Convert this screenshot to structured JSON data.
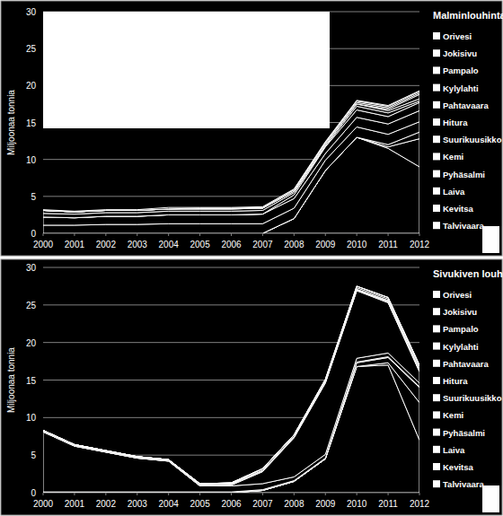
{
  "chart_data": [
    {
      "type": "area",
      "stacked": true,
      "title": "Malminlouhinta",
      "y_label": "Miljoonaa tonnia",
      "x": [
        2000,
        2001,
        2002,
        2003,
        2004,
        2005,
        2006,
        2007,
        2008,
        2009,
        2010,
        2011,
        2012
      ],
      "xlim": [
        2000,
        2012
      ],
      "xticks": [
        2000,
        2001,
        2002,
        2003,
        2004,
        2005,
        2006,
        2007,
        2008,
        2009,
        2010,
        2011,
        2012
      ],
      "ylim": [
        0,
        30
      ],
      "yticks": [
        0,
        5,
        10,
        15,
        20,
        25,
        30
      ],
      "grid": true,
      "legend": "right",
      "series": [
        {
          "name": "Talvivaara",
          "color": "#ffffff",
          "values": [
            0,
            0,
            0,
            0,
            0,
            0,
            0,
            0,
            2.0,
            8.5,
            13.0,
            11.5,
            9.0
          ]
        },
        {
          "name": "Kevitsa",
          "color": "#ffffff",
          "values": [
            0,
            0,
            0,
            0,
            0,
            0,
            0,
            0,
            0,
            0,
            0,
            0.2,
            3.8
          ]
        },
        {
          "name": "Laiva",
          "color": "#ffffff",
          "values": [
            0,
            0,
            0,
            0,
            0,
            0,
            0,
            0,
            0,
            0,
            0,
            0.3,
            0.9
          ]
        },
        {
          "name": "Pyhäsalmi",
          "color": "#ffffff",
          "values": [
            1.1,
            1.1,
            1.2,
            1.2,
            1.3,
            1.3,
            1.3,
            1.3,
            1.4,
            1.4,
            1.4,
            1.4,
            1.4
          ]
        },
        {
          "name": "Kemi",
          "color": "#ffffff",
          "values": [
            1.1,
            1.0,
            1.1,
            1.1,
            1.2,
            1.2,
            1.2,
            1.3,
            1.3,
            0.9,
            1.3,
            1.4,
            1.5
          ]
        },
        {
          "name": "Suurikuusikko",
          "color": "#ffffff",
          "values": [
            0,
            0,
            0,
            0,
            0,
            0,
            0,
            0,
            0.5,
            0.9,
            1.0,
            1.0,
            1.1
          ]
        },
        {
          "name": "Hitura",
          "color": "#ffffff",
          "values": [
            0.5,
            0.5,
            0.5,
            0.5,
            0.5,
            0.5,
            0.5,
            0.5,
            0.3,
            0.1,
            0.5,
            0.5,
            0.2
          ]
        },
        {
          "name": "Pahtavaara",
          "color": "#ffffff",
          "values": [
            0.4,
            0.3,
            0.3,
            0.3,
            0.3,
            0.3,
            0.3,
            0.3,
            0.2,
            0.2,
            0.3,
            0.3,
            0.3
          ]
        },
        {
          "name": "Kylylahti",
          "color": "#ffffff",
          "values": [
            0,
            0,
            0,
            0,
            0,
            0,
            0,
            0,
            0,
            0,
            0,
            0.2,
            0.6
          ]
        },
        {
          "name": "Pampalo",
          "color": "#ffffff",
          "values": [
            0,
            0,
            0,
            0,
            0,
            0.1,
            0.1,
            0.1,
            0.2,
            0.2,
            0.2,
            0.2,
            0.2
          ]
        },
        {
          "name": "Jokisivu",
          "color": "#ffffff",
          "values": [
            0,
            0,
            0,
            0,
            0,
            0,
            0,
            0,
            0,
            0.1,
            0.2,
            0.2,
            0.2
          ]
        },
        {
          "name": "Orivesi",
          "color": "#ffffff",
          "values": [
            0.1,
            0.1,
            0.1,
            0.1,
            0.2,
            0.1,
            0.1,
            0.1,
            0.1,
            0.1,
            0.1,
            0.1,
            0.1
          ]
        }
      ]
    },
    {
      "type": "area",
      "stacked": true,
      "title": "Sivukiven louhinta",
      "y_label": "Miljoonaa tonnia",
      "x": [
        2000,
        2001,
        2002,
        2003,
        2004,
        2005,
        2006,
        2007,
        2008,
        2009,
        2010,
        2011,
        2012
      ],
      "xlim": [
        2000,
        2012
      ],
      "xticks": [
        2000,
        2001,
        2002,
        2003,
        2004,
        2005,
        2006,
        2007,
        2008,
        2009,
        2010,
        2011,
        2012
      ],
      "ylim": [
        0,
        30
      ],
      "yticks": [
        0,
        5,
        10,
        15,
        20,
        25,
        30
      ],
      "grid": true,
      "legend": "right",
      "series": [
        {
          "name": "Talvivaara",
          "color": "#ffffff",
          "values": [
            0,
            0,
            0,
            0,
            0,
            0,
            0,
            0.3,
            1.5,
            4.5,
            16.8,
            17.0,
            7.0
          ]
        },
        {
          "name": "Kevitsa",
          "color": "#ffffff",
          "values": [
            0,
            0,
            0,
            0,
            0,
            0,
            0,
            0,
            0,
            0,
            0,
            0.3,
            5.0
          ]
        },
        {
          "name": "Laiva",
          "color": "#ffffff",
          "values": [
            0,
            0,
            0,
            0,
            0,
            0,
            0,
            0,
            0,
            0,
            0.5,
            0.7,
            2.0
          ]
        },
        {
          "name": "Pyhäsalmi",
          "color": "#ffffff",
          "values": [
            0.1,
            0.1,
            0.1,
            0.1,
            0.1,
            0.1,
            0.1,
            0.1,
            0.1,
            0.1,
            0.1,
            0.1,
            0.1
          ]
        },
        {
          "name": "Kemi",
          "color": "#ffffff",
          "values": [
            8.0,
            6.1,
            5.3,
            4.5,
            4.1,
            0.8,
            0.8,
            0.8,
            0.5,
            0.5,
            0.5,
            0.5,
            0.5
          ]
        },
        {
          "name": "Suurikuusikko",
          "color": "#ffffff",
          "values": [
            0,
            0,
            0,
            0,
            0,
            0,
            0.1,
            1.6,
            5.2,
            9.5,
            9.0,
            6.7,
            1.5
          ]
        },
        {
          "name": "Hitura",
          "color": "#ffffff",
          "values": [
            0.1,
            0.1,
            0.1,
            0.1,
            0.1,
            0.1,
            0.1,
            0.1,
            0.1,
            0.1,
            0.1,
            0.1,
            0.1
          ]
        },
        {
          "name": "Pahtavaara",
          "color": "#ffffff",
          "values": [
            0.1,
            0.1,
            0.1,
            0.1,
            0.1,
            0.1,
            0.1,
            0.1,
            0.1,
            0.1,
            0.1,
            0.1,
            0.1
          ]
        },
        {
          "name": "Kylylahti",
          "color": "#ffffff",
          "values": [
            0,
            0,
            0,
            0,
            0,
            0,
            0,
            0,
            0,
            0,
            0,
            0.1,
            0.2
          ]
        },
        {
          "name": "Pampalo",
          "color": "#ffffff",
          "values": [
            0,
            0,
            0,
            0,
            0,
            0.1,
            0.1,
            0.2,
            0.2,
            0.2,
            0.2,
            0.2,
            0.3
          ]
        },
        {
          "name": "Jokisivu",
          "color": "#ffffff",
          "values": [
            0,
            0,
            0,
            0,
            0,
            0,
            0,
            0,
            0,
            0.1,
            0.2,
            0.2,
            0.2
          ]
        },
        {
          "name": "Orivesi",
          "color": "#ffffff",
          "values": [
            0,
            0,
            0,
            0,
            0,
            0,
            0,
            0,
            0,
            0,
            0,
            0,
            0
          ]
        }
      ]
    }
  ]
}
